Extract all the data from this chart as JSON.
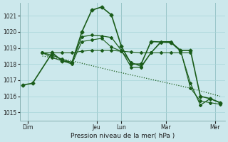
{
  "background_color": "#cce8ec",
  "grid_color": "#a8d4d8",
  "line_color": "#1a5c1a",
  "xlabel": "Pression niveau de la mer( hPa )",
  "ylim": [
    1014.5,
    1021.8
  ],
  "yticks": [
    1015,
    1016,
    1017,
    1018,
    1019,
    1020,
    1021
  ],
  "xlim": [
    -0.3,
    20.5
  ],
  "day_labels": [
    "Dim",
    "Jeu",
    "Lun",
    "Mar",
    "Mer"
  ],
  "day_positions": [
    0.5,
    7.5,
    10.0,
    14.5,
    19.5
  ],
  "vline_positions": [
    0.5,
    7.5,
    10.0,
    14.5,
    19.5
  ],
  "lines": [
    {
      "x": [
        0,
        1,
        3,
        4,
        5,
        6,
        7,
        8,
        9,
        10,
        11,
        12,
        13,
        15,
        16,
        17,
        18,
        19,
        20
      ],
      "y": [
        1016.7,
        1016.8,
        1018.7,
        1018.2,
        1018.1,
        1020.0,
        1021.35,
        1021.55,
        1021.05,
        1019.1,
        1018.0,
        1018.0,
        1019.4,
        1019.35,
        1018.85,
        1018.85,
        1016.0,
        1015.85,
        1015.6
      ],
      "style": "-",
      "marker": "D",
      "markersize": 2.5,
      "linewidth": 1.2
    },
    {
      "x": [
        2,
        3,
        4,
        5,
        6,
        7,
        8,
        9,
        10,
        11,
        12,
        13,
        14,
        15,
        16,
        17
      ],
      "y": [
        1018.7,
        1018.7,
        1018.7,
        1018.7,
        1018.8,
        1018.85,
        1018.85,
        1018.85,
        1018.8,
        1018.75,
        1018.7,
        1018.7,
        1018.7,
        1018.7,
        1018.7,
        1018.7
      ],
      "style": "-",
      "marker": "D",
      "markersize": 2.0,
      "linewidth": 0.8
    },
    {
      "x": [
        2,
        3,
        4,
        5,
        6,
        7,
        8,
        9,
        10,
        11,
        12,
        13,
        14,
        15,
        16,
        17,
        18,
        19,
        20
      ],
      "y": [
        1018.7,
        1018.4,
        1018.2,
        1018.0,
        1019.4,
        1019.5,
        1019.6,
        1019.05,
        1018.8,
        1018.1,
        1017.85,
        1018.7,
        1019.4,
        1019.4,
        1018.85,
        1016.5,
        1015.7,
        1015.6,
        1015.5
      ],
      "style": "-",
      "marker": "D",
      "markersize": 2.0,
      "linewidth": 0.8
    },
    {
      "x": [
        2,
        5,
        9,
        13,
        17,
        20
      ],
      "y": [
        1018.5,
        1018.2,
        1017.6,
        1017.05,
        1016.5,
        1016.0
      ],
      "style": ":",
      "marker": null,
      "markersize": 0,
      "linewidth": 0.9
    },
    {
      "x": [
        2,
        3,
        4,
        5,
        6,
        7,
        8,
        9,
        10,
        11,
        12,
        13,
        14,
        15,
        16,
        17,
        18,
        19,
        20
      ],
      "y": [
        1018.7,
        1018.55,
        1018.3,
        1018.1,
        1019.7,
        1019.8,
        1019.75,
        1019.65,
        1018.85,
        1017.8,
        1017.8,
        1018.7,
        1019.35,
        1019.35,
        1018.8,
        1016.8,
        1015.45,
        1015.85,
        1015.6
      ],
      "style": "-",
      "marker": "D",
      "markersize": 2.0,
      "linewidth": 0.9
    }
  ]
}
